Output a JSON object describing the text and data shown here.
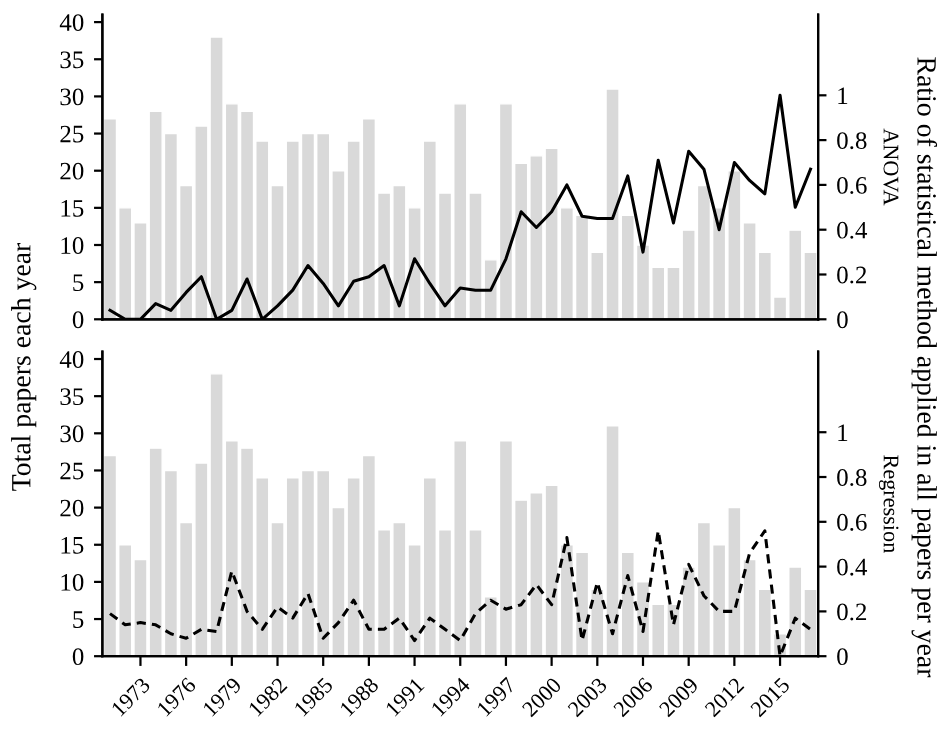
{
  "chart_data": [
    {
      "type": "bar",
      "ylabel": "Total papers each year",
      "y2label": "ANOVA",
      "annotations": [
        "Ratio of statistical method applied in all papers per year"
      ],
      "tick_labels": "y",
      "grid": false,
      "legend": false,
      "categories": [
        null,
        null,
        "1973",
        null,
        null,
        "1976",
        null,
        null,
        "1979",
        null,
        null,
        "1982",
        null,
        null,
        "1985",
        null,
        null,
        "1988",
        null,
        null,
        "1991",
        null,
        null,
        "1994",
        null,
        null,
        "1997",
        null,
        null,
        "2000",
        null,
        null,
        "2003",
        null,
        null,
        "2006",
        null,
        null,
        "2009",
        null,
        null,
        "2012",
        null,
        null,
        "2015",
        null,
        null
      ],
      "ylim": [
        0,
        41
      ],
      "yticks": [
        0,
        5,
        10,
        15,
        20,
        25,
        30,
        35,
        40
      ],
      "y2lim": [
        0,
        1.36
      ],
      "y2ticks": [
        0,
        0.2,
        0.4,
        0.6,
        0.8,
        1
      ],
      "series": [
        {
          "color": "#d9d9d9",
          "values": [
            27,
            15,
            13,
            28,
            25,
            18,
            26,
            38,
            29,
            28,
            24,
            18,
            24,
            25,
            25,
            20,
            24,
            27,
            17,
            18,
            15,
            24,
            17,
            29,
            17,
            8,
            29,
            21,
            22,
            23,
            15,
            14,
            9,
            31,
            14,
            10,
            7,
            7,
            12,
            18,
            15,
            20,
            13,
            9,
            3,
            12,
            9
          ]
        },
        {
          "type": "line",
          "axis": "y2",
          "color": "#000000",
          "line_style": "solid",
          "values": [
            0.04,
            0,
            0,
            0.07,
            0.04,
            0.12,
            0.19,
            0,
            0.04,
            0.18,
            0,
            0.06,
            0.13,
            0.24,
            0.16,
            0.06,
            0.17,
            0.19,
            0.24,
            0.06,
            0.27,
            0.16,
            0.06,
            0.14,
            0.13,
            0.13,
            0.27,
            0.48,
            0.41,
            0.48,
            0.6,
            0.46,
            0.45,
            0.45,
            0.64,
            0.3,
            0.71,
            0.43,
            0.75,
            0.67,
            0.4,
            0.7,
            0.62,
            0.56,
            1.0,
            0.5,
            0.67
          ]
        }
      ]
    },
    {
      "type": "bar",
      "y2label": "Regression",
      "grid": false,
      "legend": false,
      "categories": [
        null,
        null,
        "1973",
        null,
        null,
        "1976",
        null,
        null,
        "1979",
        null,
        null,
        "1982",
        null,
        null,
        "1985",
        null,
        null,
        "1988",
        null,
        null,
        "1991",
        null,
        null,
        "1994",
        null,
        null,
        "1997",
        null,
        null,
        "2000",
        null,
        null,
        "2003",
        null,
        null,
        "2006",
        null,
        null,
        "2009",
        null,
        null,
        "2012",
        null,
        null,
        "2015",
        null,
        null
      ],
      "ylim": [
        0,
        41
      ],
      "yticks": [
        0,
        5,
        10,
        15,
        20,
        25,
        30,
        35,
        40
      ],
      "y2lim": [
        0,
        1.36
      ],
      "y2ticks": [
        0,
        0.2,
        0.4,
        0.6,
        0.8,
        1
      ],
      "series": [
        {
          "color": "#d9d9d9",
          "values": [
            27,
            15,
            13,
            28,
            25,
            18,
            26,
            38,
            29,
            28,
            24,
            18,
            24,
            25,
            25,
            20,
            24,
            27,
            17,
            18,
            15,
            24,
            17,
            29,
            17,
            8,
            29,
            21,
            22,
            23,
            15,
            14,
            9,
            31,
            14,
            10,
            7,
            7,
            12,
            18,
            15,
            20,
            13,
            9,
            3,
            12,
            9
          ]
        },
        {
          "type": "line",
          "axis": "y2",
          "color": "#000000",
          "line_style": "dashed",
          "values": [
            0.19,
            0.14,
            0.15,
            0.14,
            0.1,
            0.08,
            0.12,
            0.11,
            0.38,
            0.2,
            0.12,
            0.22,
            0.17,
            0.28,
            0.08,
            0.15,
            0.25,
            0.12,
            0.12,
            0.17,
            0.07,
            0.17,
            0.12,
            0.07,
            0.19,
            0.25,
            0.21,
            0.23,
            0.32,
            0.23,
            0.53,
            0.07,
            0.33,
            0.1,
            0.36,
            0.11,
            0.56,
            0.14,
            0.41,
            0.27,
            0.2,
            0.2,
            0.46,
            0.56,
            0,
            0.17,
            0.12
          ]
        }
      ]
    }
  ]
}
